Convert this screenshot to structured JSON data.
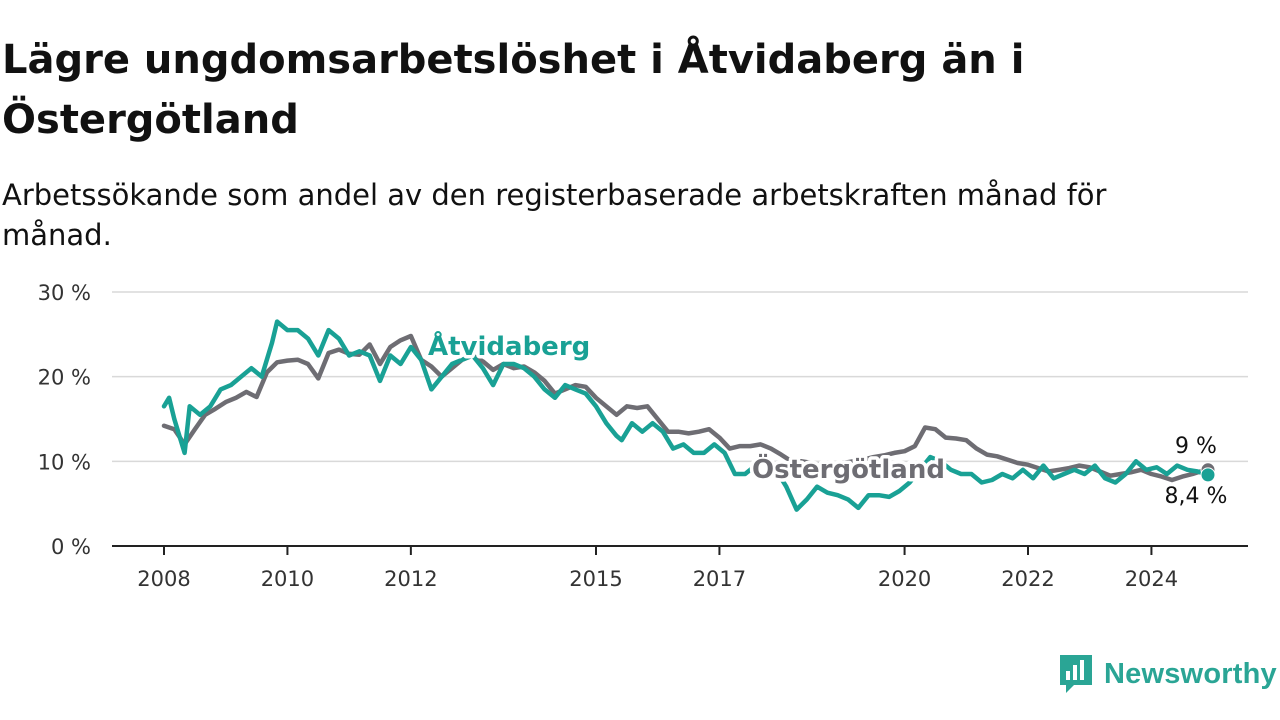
{
  "title": "Lägre ungdomsarbetslöshet i Åtvidaberg än i Östergötland",
  "subtitle": "Arbetssökande som andel av den registerbaserade arbetskraften månad för månad.",
  "brand": {
    "name": "Newsworthy",
    "icon": "newsworthy-logo-icon",
    "color": "#2aa595"
  },
  "chart_data": {
    "type": "line",
    "title": "Lägre ungdomsarbetslöshet i Åtvidaberg än i Östergötland",
    "subtitle": "Arbetssökande som andel av den registerbaserade arbetskraften månad för månad.",
    "xlabel": "",
    "ylabel": "",
    "ylim": [
      0,
      30
    ],
    "y_ticks": [
      0,
      10,
      20,
      30
    ],
    "y_tick_labels": [
      "0 %",
      "10 %",
      "20 %",
      "30 %"
    ],
    "x_ticks": [
      2008,
      2010,
      2012,
      2015,
      2017,
      2020,
      2022,
      2024
    ],
    "x_tick_labels": [
      "2008",
      "2010",
      "2012",
      "2015",
      "2017",
      "2020",
      "2022",
      "2024"
    ],
    "x_range": [
      "2008-01",
      "2024-12"
    ],
    "grid": true,
    "series": [
      {
        "name": "Östergötland",
        "color": "#6e6d73",
        "end_label": "9 %",
        "points": [
          [
            "2008-01",
            14.2
          ],
          [
            "2008-03",
            13.8
          ],
          [
            "2008-05",
            12.0
          ],
          [
            "2008-07",
            13.8
          ],
          [
            "2008-09",
            15.5
          ],
          [
            "2008-11",
            16.2
          ],
          [
            "2009-01",
            17.0
          ],
          [
            "2009-03",
            17.5
          ],
          [
            "2009-05",
            18.2
          ],
          [
            "2009-07",
            17.6
          ],
          [
            "2009-09",
            20.5
          ],
          [
            "2009-11",
            21.7
          ],
          [
            "2010-01",
            21.9
          ],
          [
            "2010-03",
            22.0
          ],
          [
            "2010-05",
            21.5
          ],
          [
            "2010-07",
            19.8
          ],
          [
            "2010-09",
            22.8
          ],
          [
            "2010-11",
            23.2
          ],
          [
            "2011-01",
            22.7
          ],
          [
            "2011-03",
            22.6
          ],
          [
            "2011-05",
            23.8
          ],
          [
            "2011-07",
            21.5
          ],
          [
            "2011-09",
            23.5
          ],
          [
            "2011-11",
            24.3
          ],
          [
            "2012-01",
            24.8
          ],
          [
            "2012-03",
            22.0
          ],
          [
            "2012-05",
            21.2
          ],
          [
            "2012-07",
            20.0
          ],
          [
            "2012-09",
            21.0
          ],
          [
            "2012-11",
            22.0
          ],
          [
            "2013-01",
            22.5
          ],
          [
            "2013-03",
            21.8
          ],
          [
            "2013-05",
            20.8
          ],
          [
            "2013-07",
            21.5
          ],
          [
            "2013-09",
            21.0
          ],
          [
            "2013-11",
            21.2
          ],
          [
            "2014-01",
            20.5
          ],
          [
            "2014-03",
            19.5
          ],
          [
            "2014-05",
            18.0
          ],
          [
            "2014-07",
            18.5
          ],
          [
            "2014-09",
            19.0
          ],
          [
            "2014-11",
            18.8
          ],
          [
            "2015-01",
            17.5
          ],
          [
            "2015-03",
            16.5
          ],
          [
            "2015-05",
            15.5
          ],
          [
            "2015-07",
            16.5
          ],
          [
            "2015-09",
            16.3
          ],
          [
            "2015-11",
            16.5
          ],
          [
            "2016-01",
            15.0
          ],
          [
            "2016-03",
            13.5
          ],
          [
            "2016-05",
            13.5
          ],
          [
            "2016-07",
            13.3
          ],
          [
            "2016-09",
            13.5
          ],
          [
            "2016-11",
            13.8
          ],
          [
            "2017-01",
            12.8
          ],
          [
            "2017-03",
            11.5
          ],
          [
            "2017-05",
            11.8
          ],
          [
            "2017-07",
            11.8
          ],
          [
            "2017-09",
            12.0
          ],
          [
            "2017-11",
            11.5
          ],
          [
            "2018-01",
            10.8
          ],
          [
            "2018-03",
            10.0
          ],
          [
            "2018-05",
            10.0
          ],
          [
            "2018-07",
            9.8
          ],
          [
            "2018-09",
            9.5
          ],
          [
            "2018-11",
            9.5
          ],
          [
            "2019-01",
            9.8
          ],
          [
            "2019-03",
            10.0
          ],
          [
            "2019-05",
            10.2
          ],
          [
            "2019-07",
            10.5
          ],
          [
            "2019-09",
            10.7
          ],
          [
            "2019-11",
            11.0
          ],
          [
            "2020-01",
            11.2
          ],
          [
            "2020-03",
            11.8
          ],
          [
            "2020-05",
            14.0
          ],
          [
            "2020-07",
            13.8
          ],
          [
            "2020-09",
            12.8
          ],
          [
            "2020-11",
            12.7
          ],
          [
            "2021-01",
            12.5
          ],
          [
            "2021-03",
            11.5
          ],
          [
            "2021-05",
            10.8
          ],
          [
            "2021-07",
            10.6
          ],
          [
            "2021-09",
            10.2
          ],
          [
            "2021-11",
            9.8
          ],
          [
            "2022-01",
            9.6
          ],
          [
            "2022-03",
            9.2
          ],
          [
            "2022-05",
            8.8
          ],
          [
            "2022-07",
            9.0
          ],
          [
            "2022-09",
            9.2
          ],
          [
            "2022-11",
            9.5
          ],
          [
            "2023-01",
            9.3
          ],
          [
            "2023-03",
            8.8
          ],
          [
            "2023-05",
            8.3
          ],
          [
            "2023-07",
            8.5
          ],
          [
            "2023-09",
            8.7
          ],
          [
            "2023-11",
            9.0
          ],
          [
            "2024-01",
            8.5
          ],
          [
            "2024-03",
            8.2
          ],
          [
            "2024-05",
            7.8
          ],
          [
            "2024-07",
            8.2
          ],
          [
            "2024-09",
            8.5
          ],
          [
            "2024-11",
            8.9
          ],
          [
            "2024-12",
            9.0
          ]
        ]
      },
      {
        "name": "Åtvidaberg",
        "color": "#19a195",
        "end_label": "8,4 %",
        "points": [
          [
            "2008-01",
            16.5
          ],
          [
            "2008-02",
            17.5
          ],
          [
            "2008-03",
            15.0
          ],
          [
            "2008-04",
            13.0
          ],
          [
            "2008-05",
            11.0
          ],
          [
            "2008-06",
            16.5
          ],
          [
            "2008-08",
            15.5
          ],
          [
            "2008-10",
            16.5
          ],
          [
            "2008-12",
            18.5
          ],
          [
            "2009-02",
            19.0
          ],
          [
            "2009-04",
            20.0
          ],
          [
            "2009-06",
            21.0
          ],
          [
            "2009-08",
            20.0
          ],
          [
            "2009-10",
            24.0
          ],
          [
            "2009-11",
            26.5
          ],
          [
            "2010-01",
            25.5
          ],
          [
            "2010-03",
            25.5
          ],
          [
            "2010-05",
            24.5
          ],
          [
            "2010-07",
            22.5
          ],
          [
            "2010-09",
            25.5
          ],
          [
            "2010-11",
            24.5
          ],
          [
            "2011-01",
            22.5
          ],
          [
            "2011-03",
            23.0
          ],
          [
            "2011-05",
            22.5
          ],
          [
            "2011-07",
            19.5
          ],
          [
            "2011-09",
            22.5
          ],
          [
            "2011-11",
            21.5
          ],
          [
            "2012-01",
            23.5
          ],
          [
            "2012-03",
            22.0
          ],
          [
            "2012-05",
            18.5
          ],
          [
            "2012-07",
            20.0
          ],
          [
            "2012-09",
            21.5
          ],
          [
            "2012-11",
            22.0
          ],
          [
            "2013-01",
            22.5
          ],
          [
            "2013-03",
            21.0
          ],
          [
            "2013-05",
            19.0
          ],
          [
            "2013-07",
            21.5
          ],
          [
            "2013-09",
            21.5
          ],
          [
            "2013-11",
            21.0
          ],
          [
            "2014-01",
            20.0
          ],
          [
            "2014-03",
            18.5
          ],
          [
            "2014-05",
            17.5
          ],
          [
            "2014-07",
            19.0
          ],
          [
            "2014-09",
            18.5
          ],
          [
            "2014-11",
            18.0
          ],
          [
            "2015-01",
            16.5
          ],
          [
            "2015-03",
            14.5
          ],
          [
            "2015-05",
            13.0
          ],
          [
            "2015-06",
            12.5
          ],
          [
            "2015-08",
            14.5
          ],
          [
            "2015-10",
            13.5
          ],
          [
            "2015-12",
            14.5
          ],
          [
            "2016-02",
            13.5
          ],
          [
            "2016-04",
            11.5
          ],
          [
            "2016-06",
            12.0
          ],
          [
            "2016-08",
            11.0
          ],
          [
            "2016-10",
            11.0
          ],
          [
            "2016-12",
            12.0
          ],
          [
            "2017-02",
            11.0
          ],
          [
            "2017-04",
            8.5
          ],
          [
            "2017-06",
            8.5
          ],
          [
            "2017-08",
            9.5
          ],
          [
            "2017-10",
            10.5
          ],
          [
            "2017-12",
            9.0
          ],
          [
            "2018-02",
            7.0
          ],
          [
            "2018-04",
            4.3
          ],
          [
            "2018-06",
            5.5
          ],
          [
            "2018-08",
            7.0
          ],
          [
            "2018-10",
            6.3
          ],
          [
            "2018-12",
            6.0
          ],
          [
            "2019-02",
            5.5
          ],
          [
            "2019-04",
            4.5
          ],
          [
            "2019-06",
            6.0
          ],
          [
            "2019-08",
            6.0
          ],
          [
            "2019-10",
            5.8
          ],
          [
            "2019-12",
            6.5
          ],
          [
            "2020-02",
            7.5
          ],
          [
            "2020-04",
            9.0
          ],
          [
            "2020-06",
            10.5
          ],
          [
            "2020-08",
            10.0
          ],
          [
            "2020-10",
            9.0
          ],
          [
            "2020-12",
            8.5
          ],
          [
            "2021-02",
            8.5
          ],
          [
            "2021-04",
            7.5
          ],
          [
            "2021-06",
            7.8
          ],
          [
            "2021-08",
            8.5
          ],
          [
            "2021-10",
            8.0
          ],
          [
            "2021-12",
            9.0
          ],
          [
            "2022-02",
            8.0
          ],
          [
            "2022-04",
            9.5
          ],
          [
            "2022-06",
            8.0
          ],
          [
            "2022-08",
            8.5
          ],
          [
            "2022-10",
            9.0
          ],
          [
            "2022-12",
            8.5
          ],
          [
            "2023-02",
            9.5
          ],
          [
            "2023-04",
            8.0
          ],
          [
            "2023-06",
            7.5
          ],
          [
            "2023-08",
            8.5
          ],
          [
            "2023-10",
            10.0
          ],
          [
            "2023-12",
            9.0
          ],
          [
            "2024-02",
            9.3
          ],
          [
            "2024-04",
            8.5
          ],
          [
            "2024-06",
            9.5
          ],
          [
            "2024-08",
            9.0
          ],
          [
            "2024-10",
            8.8
          ],
          [
            "2024-12",
            8.4
          ]
        ]
      }
    ]
  }
}
